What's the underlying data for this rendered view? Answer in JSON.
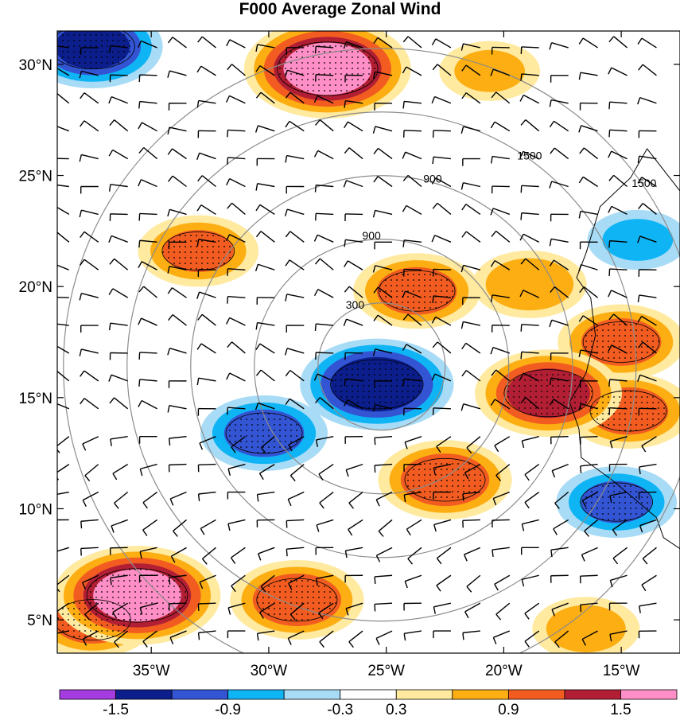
{
  "chart_data": {
    "type": "heatmap",
    "title": "F000 Average Zonal Wind",
    "x_axis": {
      "range_deg_lon": [
        -39,
        -12.5
      ],
      "ticks": [
        {
          "value": -35,
          "label": "35°W"
        },
        {
          "value": -30,
          "label": "30°W"
        },
        {
          "value": -25,
          "label": "25°W"
        },
        {
          "value": -20,
          "label": "20°W"
        },
        {
          "value": -15,
          "label": "15°W"
        }
      ]
    },
    "y_axis": {
      "range_deg_lat": [
        3.5,
        31.5
      ],
      "ticks": [
        {
          "value": 5,
          "label": "5°N"
        },
        {
          "value": 10,
          "label": "10°N"
        },
        {
          "value": 15,
          "label": "15°N"
        },
        {
          "value": 20,
          "label": "20°N"
        },
        {
          "value": 25,
          "label": "25°N"
        },
        {
          "value": 30,
          "label": "30°N"
        }
      ]
    },
    "colorbar": {
      "labels": [
        "-1.5",
        "-0.9",
        "-0.3",
        "0.3",
        "0.9",
        "1.5"
      ],
      "colors": [
        "#a43ce0",
        "#0b1e8c",
        "#3355d4",
        "#0fb4f5",
        "#a8dcf6",
        "#ffffff",
        "#ffeaa0",
        "#fcae12",
        "#f25c20",
        "#b21f34",
        "#ff8fc6"
      ]
    },
    "range_rings": [
      {
        "label": "300"
      },
      {
        "label": "900"
      },
      {
        "label": "1500"
      }
    ],
    "ring_center": {
      "lon": -25.2,
      "lat": 16.4
    },
    "anomaly_centers": [
      {
        "lon": -27.5,
        "lat": 29.8,
        "value": 1.6
      },
      {
        "lon": -33,
        "lat": 21.6,
        "value": 0.9
      },
      {
        "lon": -23.7,
        "lat": 19.8,
        "value": 1.0
      },
      {
        "lon": -25.4,
        "lat": 15.6,
        "value": -1.4
      },
      {
        "lon": -30.2,
        "lat": 13.4,
        "value": -1.0
      },
      {
        "lon": -22.5,
        "lat": 11.3,
        "value": 1.1
      },
      {
        "lon": -18.1,
        "lat": 15.2,
        "value": 1.3
      },
      {
        "lon": -14.7,
        "lat": 14.4,
        "value": 1.0
      },
      {
        "lon": -15.0,
        "lat": 17.5,
        "value": 1.0
      },
      {
        "lon": -15.2,
        "lat": 10.3,
        "value": -0.9
      },
      {
        "lon": -35.6,
        "lat": 6.1,
        "value": 1.6
      },
      {
        "lon": -28.8,
        "lat": 5.9,
        "value": 1.1
      },
      {
        "lon": -37.5,
        "lat": 5.0,
        "value": 1.0
      },
      {
        "lon": -37.5,
        "lat": 30.8,
        "value": -1.2
      },
      {
        "lon": -18.9,
        "lat": 20.1,
        "value": 0.8
      },
      {
        "lon": -14.3,
        "lat": 22.1,
        "value": -0.6
      },
      {
        "lon": -20.6,
        "lat": 29.7,
        "value": 0.6
      },
      {
        "lon": -16.5,
        "lat": 4.6,
        "value": 0.7
      }
    ]
  }
}
